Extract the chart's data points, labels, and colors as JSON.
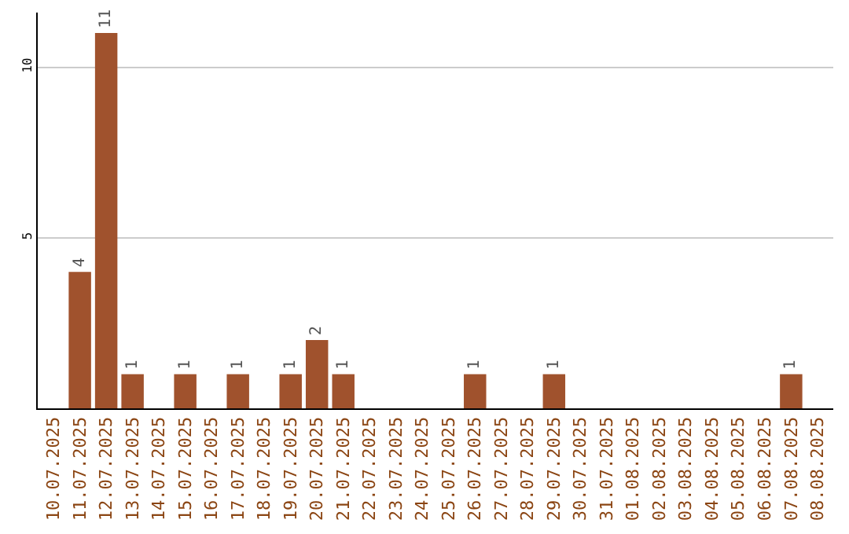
{
  "chart_data": {
    "type": "bar",
    "categories": [
      "10.07.2025",
      "11.07.2025",
      "12.07.2025",
      "13.07.2025",
      "14.07.2025",
      "15.07.2025",
      "16.07.2025",
      "17.07.2025",
      "18.07.2025",
      "19.07.2025",
      "20.07.2025",
      "21.07.2025",
      "22.07.2025",
      "23.07.2025",
      "24.07.2025",
      "25.07.2025",
      "26.07.2025",
      "27.07.2025",
      "28.07.2025",
      "29.07.2025",
      "30.07.2025",
      "31.07.2025",
      "01.08.2025",
      "02.08.2025",
      "03.08.2025",
      "04.08.2025",
      "05.08.2025",
      "06.08.2025",
      "07.08.2025",
      "08.08.2025"
    ],
    "values": [
      null,
      4,
      11,
      1,
      null,
      1,
      null,
      1,
      null,
      1,
      2,
      1,
      null,
      null,
      null,
      null,
      1,
      null,
      null,
      1,
      null,
      null,
      null,
      null,
      null,
      null,
      null,
      null,
      1,
      null
    ],
    "value_labels": [
      null,
      "4",
      "11",
      "1",
      null,
      "1",
      null,
      "1",
      null,
      "1",
      "2",
      "1",
      null,
      null,
      null,
      null,
      "1",
      null,
      null,
      "1",
      null,
      null,
      null,
      null,
      null,
      null,
      null,
      null,
      "1",
      null
    ],
    "color": "#a0522d",
    "ylim": [
      0,
      11.6
    ],
    "yticks": [
      5,
      10
    ],
    "grid": "y",
    "legend": false
  }
}
